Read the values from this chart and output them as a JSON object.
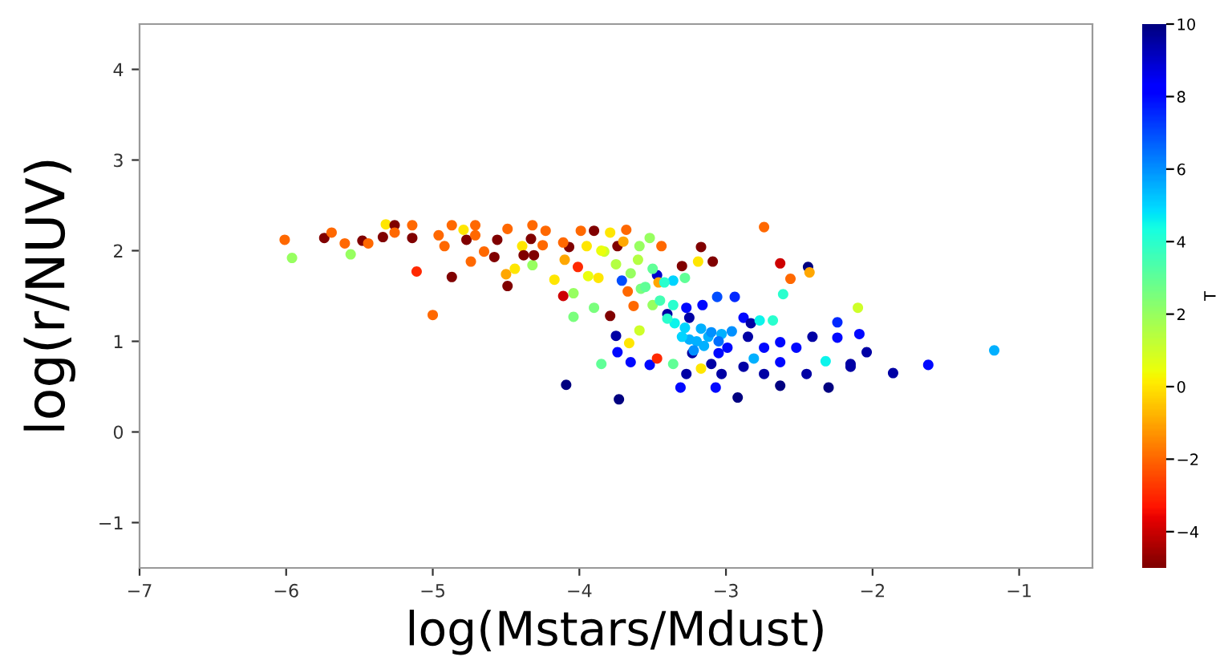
{
  "chart_data": {
    "type": "scatter",
    "xlabel": "log(Mstars/Mdust)",
    "ylabel": "log(r/NUV)",
    "clabel": "T",
    "xlim": [
      -7,
      -0.5
    ],
    "xticks": [
      -7,
      -6,
      -5,
      -4,
      -3,
      -2,
      -1
    ],
    "ylim": [
      -1.5,
      4.5
    ],
    "yticks": [
      -1,
      0,
      1,
      2,
      3,
      4
    ],
    "clim": [
      -5,
      10
    ],
    "cticks": [
      -4,
      -2,
      0,
      2,
      4,
      6,
      8,
      10
    ],
    "grid": false,
    "marker": "circle",
    "series": [
      {
        "x": [
          -6.01,
          -5.96,
          -5.74,
          -5.69,
          -5.6,
          -5.56,
          -5.48,
          -5.44,
          -5.34,
          -5.32,
          -5.26,
          -5.26,
          -5.14,
          -5.14,
          -5.11,
          -5.0,
          -4.96,
          -4.92,
          -4.87,
          -4.87,
          -4.79,
          -4.77,
          -4.71,
          -4.71,
          -4.74,
          -4.65,
          -4.58,
          -4.56,
          -4.5,
          -4.49,
          -4.49,
          -4.44,
          -4.39,
          -4.38,
          -4.32,
          -4.33,
          -4.32,
          -4.31,
          -4.23,
          -4.25,
          -4.17,
          -4.11,
          -4.04,
          -4.04,
          -4.1,
          -4.01,
          -4.07,
          -4.11,
          -3.94,
          -3.9,
          -3.85,
          -4.09,
          -3.99,
          -3.9,
          -3.68,
          -3.79,
          -3.74,
          -3.83,
          -3.59,
          -3.52,
          -3.44,
          -3.17,
          -2.74,
          -2.63,
          -2.44,
          -2.43,
          -2.56,
          -2.61,
          -3.09,
          -3.3,
          -3.19,
          -3.47,
          -3.36,
          -3.28,
          -3.46,
          -3.71,
          -3.87,
          -3.67,
          -3.58,
          -3.79,
          -3.63,
          -3.5,
          -3.36,
          -3.27,
          -3.16,
          -3.06,
          -2.94,
          -3.4,
          -3.25,
          -3.59,
          -3.75,
          -3.66,
          -3.74,
          -3.65,
          -3.52,
          -3.47,
          -3.36,
          -3.25,
          -3.17,
          -3.12,
          -3.23,
          -3.17,
          -3.27,
          -3.1,
          -3.05,
          -2.99,
          -3.03,
          -2.96,
          -2.88,
          -2.83,
          -2.77,
          -2.68,
          -2.85,
          -2.74,
          -2.63,
          -2.52,
          -2.41,
          -2.24,
          -2.09,
          -2.24,
          -2.1,
          -2.04,
          -2.81,
          -2.88,
          -3.03,
          -2.74,
          -2.63,
          -2.45,
          -2.32,
          -2.15,
          -2.3,
          -2.63,
          -2.92,
          -3.07,
          -3.31,
          -3.73,
          -1.86,
          -1.17,
          -1.62,
          -2.15,
          -3.2,
          -3.15,
          -3.1,
          -3.3,
          -3.22,
          -3.05,
          -3.35,
          -3.28,
          -3.4,
          -3.45,
          -3.55,
          -3.65,
          -3.75,
          -3.6,
          -3.5,
          -3.42,
          -3.85,
          -3.7,
          -3.95
        ],
        "values": [
          2.12,
          1.92,
          2.14,
          2.2,
          2.08,
          1.96,
          2.11,
          2.08,
          2.15,
          2.29,
          2.28,
          2.2,
          2.28,
          2.14,
          1.77,
          1.29,
          2.17,
          2.05,
          2.28,
          1.71,
          2.23,
          2.12,
          2.28,
          2.17,
          1.88,
          1.99,
          1.93,
          2.12,
          1.74,
          1.61,
          2.24,
          1.8,
          2.05,
          1.95,
          2.28,
          2.13,
          1.84,
          1.95,
          2.22,
          2.06,
          1.68,
          1.5,
          1.53,
          1.27,
          1.9,
          1.82,
          2.04,
          2.09,
          1.72,
          1.37,
          0.75,
          0.52,
          2.22,
          2.22,
          2.23,
          2.2,
          2.05,
          1.99,
          2.05,
          2.14,
          2.05,
          2.04,
          2.26,
          1.86,
          1.82,
          1.76,
          1.69,
          1.52,
          1.88,
          1.83,
          1.88,
          1.73,
          1.67,
          1.7,
          1.65,
          1.67,
          1.7,
          1.55,
          1.58,
          1.28,
          1.39,
          1.4,
          1.4,
          1.37,
          1.4,
          1.49,
          1.49,
          1.3,
          1.26,
          1.12,
          1.06,
          0.98,
          0.88,
          0.77,
          0.74,
          0.81,
          0.75,
          1.02,
          1.14,
          1.05,
          0.87,
          0.7,
          0.64,
          0.75,
          0.87,
          0.93,
          1.08,
          1.11,
          1.26,
          1.2,
          1.23,
          1.23,
          1.05,
          0.93,
          0.99,
          0.93,
          1.05,
          1.04,
          1.08,
          1.21,
          1.37,
          0.88,
          0.81,
          0.72,
          0.64,
          0.64,
          0.77,
          0.64,
          0.78,
          0.75,
          0.49,
          0.51,
          0.38,
          0.49,
          0.49,
          0.36,
          0.65,
          0.9,
          0.74,
          0.72,
          1.0,
          0.95,
          1.1,
          1.05,
          0.9,
          1.0,
          1.2,
          1.15,
          1.25,
          1.45,
          1.6,
          1.75,
          1.85,
          1.9,
          1.8,
          1.65,
          2.0,
          2.1,
          2.05
        ],
        "cvalues": [
          -2,
          2,
          -5,
          -2,
          -2,
          2,
          -5,
          -2,
          -5,
          0,
          -5,
          -2,
          -2,
          -5,
          -3,
          -2,
          -2,
          -2,
          -2,
          -5,
          0,
          -5,
          -2,
          -2,
          -2,
          -2,
          -5,
          -5,
          -1,
          -5,
          -2,
          0,
          0,
          -5,
          -2,
          -5,
          2,
          -5,
          -2,
          -2,
          0,
          -4,
          2,
          2.5,
          -1,
          -3,
          -5,
          -2,
          0.5,
          2.5,
          3,
          10,
          -2,
          -5,
          -2,
          0,
          -5,
          1,
          2,
          2,
          -2,
          -5,
          -2,
          -4,
          10,
          -1,
          -2,
          4,
          -5,
          -5,
          0,
          9,
          5,
          3,
          -1,
          7,
          0,
          -2,
          2.5,
          -5,
          -2,
          2,
          4,
          8,
          8,
          7,
          7.5,
          9.5,
          9.5,
          1,
          9.5,
          0,
          8,
          8,
          8,
          -3,
          3,
          5.5,
          5.5,
          5.5,
          9.5,
          0,
          9.5,
          9.5,
          8,
          8,
          5.5,
          6,
          8,
          9.5,
          4.5,
          4,
          9.5,
          8,
          8,
          8,
          9.5,
          8,
          8,
          7.5,
          1,
          9.5,
          5.5,
          9.5,
          9.5,
          9.5,
          8,
          9.5,
          4.5,
          9.5,
          10,
          10,
          10,
          8,
          8,
          10,
          9.5,
          5.5,
          8,
          9.5,
          5.5,
          5.5,
          6,
          5,
          6,
          6.5,
          4.5,
          5,
          4,
          3.5,
          3,
          2,
          1.5,
          1.5,
          3,
          4,
          0.5,
          -1,
          0
        ]
      }
    ]
  }
}
